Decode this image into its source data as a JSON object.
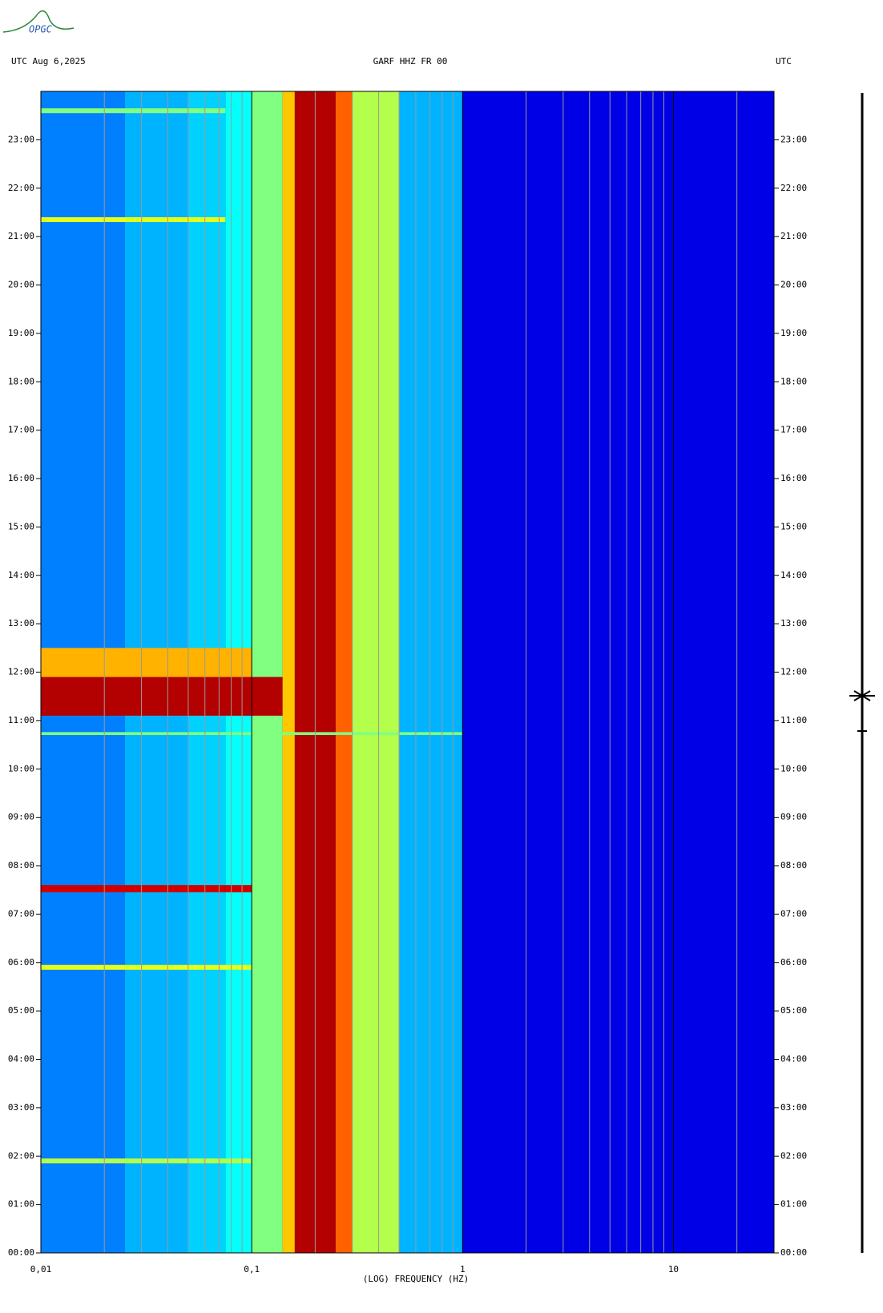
{
  "chart_data": {
    "type": "spectrogram",
    "logo": "OPGC",
    "title_left": "UTC  Aug 6,2025",
    "title": "GARF HHZ FR 00",
    "title_right": "UTC",
    "x_label": "(LOG) FREQUENCY (HZ)",
    "x_log": true,
    "xlim": [
      0.01,
      30
    ],
    "xticks": [
      {
        "value": 0.01,
        "label": "0,01"
      },
      {
        "value": 0.1,
        "label": "0,1"
      },
      1,
      10
    ],
    "xgrid": [
      0.02,
      0.03,
      0.04,
      0.05,
      0.06,
      0.07,
      0.08,
      0.09,
      0.2,
      0.3,
      0.4,
      0.5,
      0.6,
      0.7,
      0.8,
      0.9,
      2,
      3,
      4,
      5,
      6,
      7,
      8,
      9,
      20
    ],
    "ylim": [
      0,
      24
    ],
    "yticks": [
      {
        "value": 0,
        "label": "00:00"
      },
      {
        "value": 1,
        "label": "01:00"
      },
      {
        "value": 2,
        "label": "02:00"
      },
      {
        "value": 3,
        "label": "03:00"
      },
      {
        "value": 4,
        "label": "04:00"
      },
      {
        "value": 5,
        "label": "05:00"
      },
      {
        "value": 6,
        "label": "06:00"
      },
      {
        "value": 7,
        "label": "07:00"
      },
      {
        "value": 8,
        "label": "08:00"
      },
      {
        "value": 9,
        "label": "09:00"
      },
      {
        "value": 10,
        "label": "10:00"
      },
      {
        "value": 11,
        "label": "11:00"
      },
      {
        "value": 12,
        "label": "12:00"
      },
      {
        "value": 13,
        "label": "13:00"
      },
      {
        "value": 14,
        "label": "14:00"
      },
      {
        "value": 15,
        "label": "15:00"
      },
      {
        "value": 16,
        "label": "16:00"
      },
      {
        "value": 17,
        "label": "17:00"
      },
      {
        "value": 18,
        "label": "18:00"
      },
      {
        "value": 19,
        "label": "19:00"
      },
      {
        "value": 20,
        "label": "20:00"
      },
      {
        "value": 21,
        "label": "21:00"
      },
      {
        "value": 22,
        "label": "22:00"
      },
      {
        "value": 23,
        "label": "23:00"
      }
    ],
    "freq_bins": [
      0.01,
      0.025,
      0.05,
      0.075,
      0.1,
      0.14,
      0.16,
      0.25,
      0.3,
      0.5,
      1,
      30
    ],
    "levels": [
      0.25,
      0.3,
      0.33,
      0.38,
      0.5,
      0.68,
      0.95,
      0.78,
      0.55,
      0.3,
      0.1
    ],
    "events": [
      {
        "start": 11.1,
        "end": 11.9,
        "fmax": 0.14,
        "level": 0.95
      },
      {
        "start": 11.9,
        "end": 12.5,
        "fmax": 0.1,
        "level": 0.7
      },
      {
        "start": 7.45,
        "end": 7.6,
        "fmax": 0.1,
        "level": 0.92
      },
      {
        "start": 21.3,
        "end": 21.4,
        "fmax": 0.075,
        "level": 0.6
      },
      {
        "start": 23.55,
        "end": 23.65,
        "fmax": 0.075,
        "level": 0.5
      },
      {
        "start": 5.85,
        "end": 5.95,
        "fmax": 0.1,
        "level": 0.6
      },
      {
        "start": 1.85,
        "end": 1.95,
        "fmax": 0.1,
        "level": 0.55
      },
      {
        "start": 10.7,
        "end": 10.76,
        "fmax": 1,
        "level": 0.5
      }
    ]
  }
}
